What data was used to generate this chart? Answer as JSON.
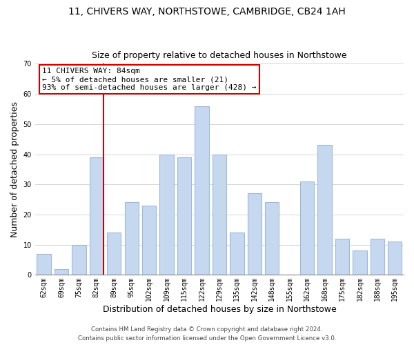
{
  "title": "11, CHIVERS WAY, NORTHSTOWE, CAMBRIDGE, CB24 1AH",
  "subtitle": "Size of property relative to detached houses in Northstowe",
  "xlabel": "Distribution of detached houses by size in Northstowe",
  "ylabel": "Number of detached properties",
  "bar_labels": [
    "62sqm",
    "69sqm",
    "75sqm",
    "82sqm",
    "89sqm",
    "95sqm",
    "102sqm",
    "109sqm",
    "115sqm",
    "122sqm",
    "129sqm",
    "135sqm",
    "142sqm",
    "148sqm",
    "155sqm",
    "162sqm",
    "168sqm",
    "175sqm",
    "182sqm",
    "188sqm",
    "195sqm"
  ],
  "bar_values": [
    7,
    2,
    10,
    39,
    14,
    24,
    23,
    40,
    39,
    56,
    40,
    14,
    27,
    24,
    0,
    31,
    43,
    12,
    8,
    12,
    11
  ],
  "highlight_index": 3,
  "bar_color": "#c5d8f0",
  "bar_edge_color": "#a0b8d8",
  "highlight_line_color": "#cc0000",
  "annotation_text": "11 CHIVERS WAY: 84sqm\n← 5% of detached houses are smaller (21)\n93% of semi-detached houses are larger (428) →",
  "annotation_box_color": "#ffffff",
  "annotation_box_edge": "#cc0000",
  "ylim": [
    0,
    70
  ],
  "yticks": [
    0,
    10,
    20,
    30,
    40,
    50,
    60,
    70
  ],
  "footer_line1": "Contains HM Land Registry data © Crown copyright and database right 2024.",
  "footer_line2": "Contains public sector information licensed under the Open Government Licence v3.0.",
  "title_fontsize": 10,
  "subtitle_fontsize": 9,
  "axis_label_fontsize": 9,
  "tick_fontsize": 7,
  "annot_fontsize": 8
}
